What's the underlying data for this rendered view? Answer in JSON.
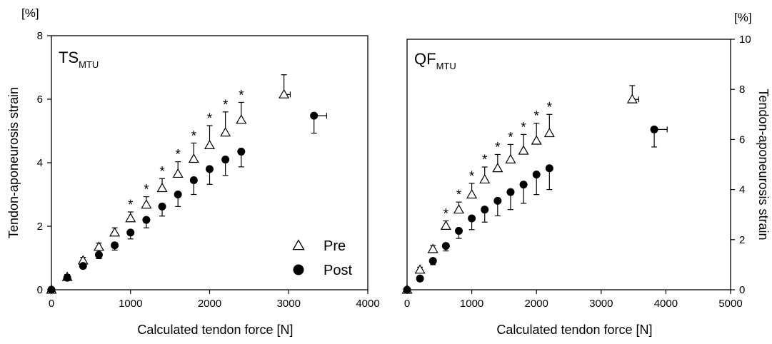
{
  "chart_data": [
    {
      "type": "scatter",
      "title": "TS",
      "title_sub": "MTU",
      "xlabel": "Calculated tendon force [N]",
      "ylabel": "Tendon-aponeurosis strain",
      "yunit": "[%]",
      "xlim": [
        0,
        4000
      ],
      "ylim": [
        0,
        8
      ],
      "xticks": [
        "0",
        "1000",
        "2000",
        "3000",
        "4000"
      ],
      "yticks": [
        "0",
        "2",
        "4",
        "6",
        "8"
      ],
      "grid": false,
      "legend": {
        "position": "bottom-right",
        "entries": [
          "Pre",
          "Post"
        ]
      },
      "series": [
        {
          "name": "Pre",
          "marker": "open-triangle",
          "points": [
            {
              "x": 0,
              "y": 0,
              "yerr": 0
            },
            {
              "x": 200,
              "y": 0.4,
              "yerr": 0.08
            },
            {
              "x": 400,
              "y": 0.92,
              "yerr": 0.1
            },
            {
              "x": 600,
              "y": 1.35,
              "yerr": 0.12
            },
            {
              "x": 800,
              "y": 1.8,
              "yerr": 0.15
            },
            {
              "x": 1000,
              "y": 2.25,
              "yerr": 0.2
            },
            {
              "x": 1200,
              "y": 2.68,
              "yerr": 0.25
            },
            {
              "x": 1400,
              "y": 3.2,
              "yerr": 0.3
            },
            {
              "x": 1600,
              "y": 3.65,
              "yerr": 0.38
            },
            {
              "x": 1800,
              "y": 4.12,
              "yerr": 0.5
            },
            {
              "x": 2000,
              "y": 4.55,
              "yerr": 0.62
            },
            {
              "x": 2200,
              "y": 4.95,
              "yerr": 0.65
            },
            {
              "x": 2400,
              "y": 5.35,
              "yerr": 0.55
            },
            {
              "x": 2940,
              "y": 6.15,
              "yerr": 0.62,
              "xerr": 80
            }
          ]
        },
        {
          "name": "Post",
          "marker": "filled-circle",
          "points": [
            {
              "x": 0,
              "y": 0,
              "yerr": 0
            },
            {
              "x": 200,
              "y": 0.38,
              "yerr": 0.05
            },
            {
              "x": 400,
              "y": 0.75,
              "yerr": 0.08
            },
            {
              "x": 600,
              "y": 1.1,
              "yerr": 0.12
            },
            {
              "x": 800,
              "y": 1.4,
              "yerr": 0.15
            },
            {
              "x": 1000,
              "y": 1.8,
              "yerr": 0.2
            },
            {
              "x": 1200,
              "y": 2.2,
              "yerr": 0.25
            },
            {
              "x": 1400,
              "y": 2.62,
              "yerr": 0.3
            },
            {
              "x": 1600,
              "y": 3.0,
              "yerr": 0.38
            },
            {
              "x": 1800,
              "y": 3.45,
              "yerr": 0.45
            },
            {
              "x": 2000,
              "y": 3.8,
              "yerr": 0.48
            },
            {
              "x": 2200,
              "y": 4.1,
              "yerr": 0.5
            },
            {
              "x": 2400,
              "y": 4.35,
              "yerr": 0.48
            },
            {
              "x": 3320,
              "y": 5.48,
              "yerr": 0.55,
              "xerr": 160
            }
          ]
        }
      ],
      "annotations": {
        "marker": "*",
        "x": [
          1000,
          1200,
          1400,
          1600,
          1800,
          2000,
          2200,
          2400
        ]
      }
    },
    {
      "type": "scatter",
      "title": "QF",
      "title_sub": "MTU",
      "xlabel": "Calculated tendon force [N]",
      "ylabel": "Tendon-aponeurosis strain",
      "yunit": "[%]",
      "xlim": [
        0,
        5000
      ],
      "ylim": [
        0,
        10
      ],
      "xticks": [
        "0",
        "1000",
        "2000",
        "3000",
        "4000",
        "5000"
      ],
      "yticks": [
        "0",
        "2",
        "4",
        "6",
        "8",
        "10"
      ],
      "grid": false,
      "legend": null,
      "series": [
        {
          "name": "Pre",
          "marker": "open-triangle",
          "points": [
            {
              "x": 0,
              "y": 0,
              "yerr": 0
            },
            {
              "x": 200,
              "y": 0.8,
              "yerr": 0.1
            },
            {
              "x": 400,
              "y": 1.62,
              "yerr": 0.15
            },
            {
              "x": 600,
              "y": 2.55,
              "yerr": 0.2
            },
            {
              "x": 800,
              "y": 3.2,
              "yerr": 0.3
            },
            {
              "x": 1000,
              "y": 3.8,
              "yerr": 0.45
            },
            {
              "x": 1200,
              "y": 4.4,
              "yerr": 0.5
            },
            {
              "x": 1400,
              "y": 4.85,
              "yerr": 0.55
            },
            {
              "x": 1600,
              "y": 5.2,
              "yerr": 0.6
            },
            {
              "x": 1800,
              "y": 5.55,
              "yerr": 0.65
            },
            {
              "x": 2000,
              "y": 5.95,
              "yerr": 0.7
            },
            {
              "x": 2200,
              "y": 6.25,
              "yerr": 0.75
            },
            {
              "x": 3480,
              "y": 7.6,
              "yerr": 0.55,
              "xerr": 100
            }
          ]
        },
        {
          "name": "Post",
          "marker": "filled-circle",
          "points": [
            {
              "x": 0,
              "y": 0,
              "yerr": 0
            },
            {
              "x": 200,
              "y": 0.45,
              "yerr": 0.1
            },
            {
              "x": 400,
              "y": 1.15,
              "yerr": 0.15
            },
            {
              "x": 600,
              "y": 1.75,
              "yerr": 0.2
            },
            {
              "x": 800,
              "y": 2.35,
              "yerr": 0.3
            },
            {
              "x": 1000,
              "y": 2.85,
              "yerr": 0.45
            },
            {
              "x": 1200,
              "y": 3.2,
              "yerr": 0.5
            },
            {
              "x": 1400,
              "y": 3.55,
              "yerr": 0.6
            },
            {
              "x": 1600,
              "y": 3.9,
              "yerr": 0.7
            },
            {
              "x": 1800,
              "y": 4.2,
              "yerr": 0.75
            },
            {
              "x": 2000,
              "y": 4.6,
              "yerr": 0.8
            },
            {
              "x": 2200,
              "y": 4.85,
              "yerr": 0.85
            },
            {
              "x": 3820,
              "y": 6.4,
              "yerr": 0.7,
              "xerr": 200
            }
          ]
        }
      ],
      "annotations": {
        "marker": "*",
        "x": [
          600,
          800,
          1000,
          1200,
          1400,
          1600,
          1800,
          2000,
          2200
        ]
      }
    }
  ]
}
